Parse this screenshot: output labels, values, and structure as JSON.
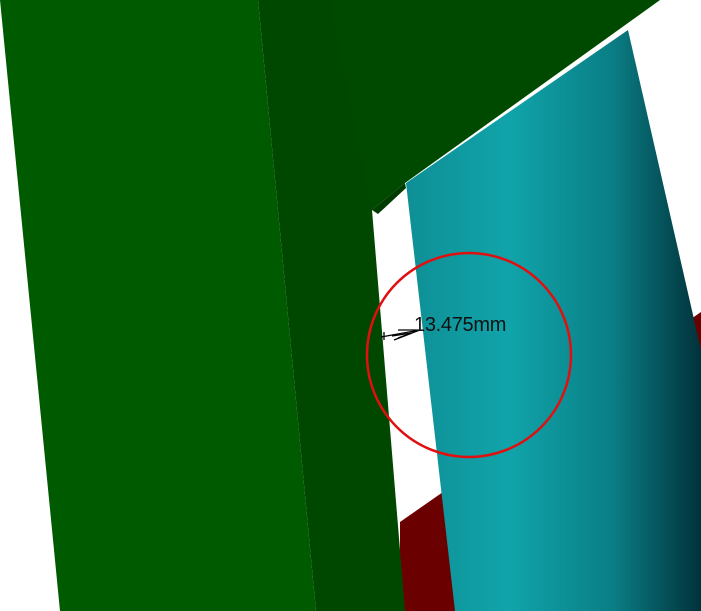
{
  "viewport": {
    "background_color": "#ffffff"
  },
  "parts": {
    "left_beam_front_color": "#005a00",
    "left_beam_side_color": "#004800",
    "top_plate_color": "#004a00",
    "cylinder_color_light": "#0aa0a5",
    "cylinder_color_dark": "#012f35",
    "base_bar_color": "#6b0000",
    "gray_block_color": "#8c8c8c"
  },
  "measurement": {
    "value_text": "13.475mm",
    "highlight_color": "#e01010",
    "arrow_color": "#000000"
  },
  "icons": {
    "dimension_arrow": "double-arrow-icon",
    "highlight_marker": "circle-marker-icon"
  }
}
